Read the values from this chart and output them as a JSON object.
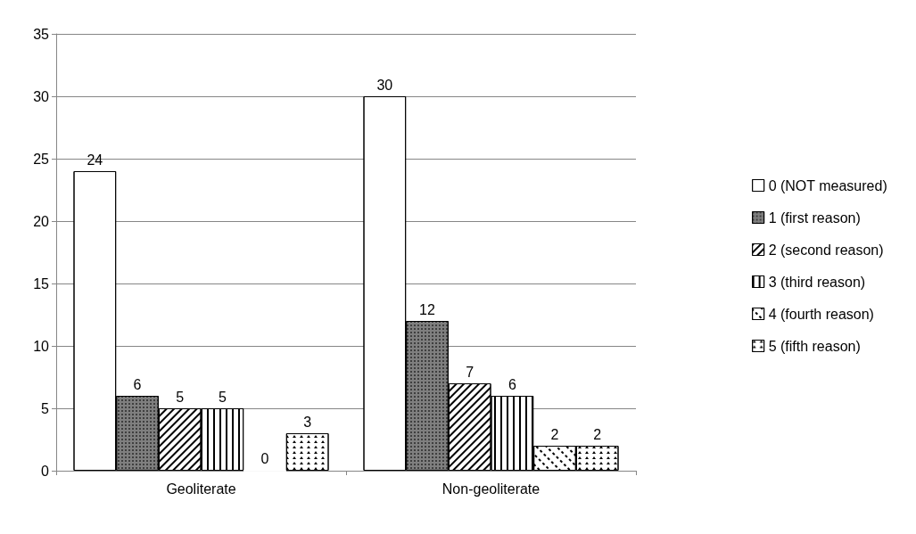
{
  "chart_data": {
    "type": "bar",
    "categories": [
      "Geoliterate",
      "Non-geoliterate"
    ],
    "series": [
      {
        "name": "0 (NOT measured)",
        "color": "#ffffff",
        "values": [
          24,
          30
        ]
      },
      {
        "name": "1 (first reason)",
        "color": "#7f7f7f",
        "values": [
          6,
          12
        ]
      },
      {
        "name": "2 (second reason)",
        "color": "#ffffff",
        "values": [
          5,
          7
        ]
      },
      {
        "name": "3 (third reason)",
        "color": "#ffffff",
        "values": [
          5,
          6
        ]
      },
      {
        "name": "4 (fourth reason)",
        "color": "#ffffff",
        "values": [
          0,
          2
        ]
      },
      {
        "name": "5 (fifth reason)",
        "color": "#ffffff",
        "values": [
          3,
          2
        ]
      }
    ],
    "ylim": [
      0,
      35
    ],
    "yticks": [
      0,
      5,
      10,
      15,
      20,
      25,
      30,
      35
    ],
    "grid": "y",
    "legend": "right",
    "data_labels": true
  }
}
